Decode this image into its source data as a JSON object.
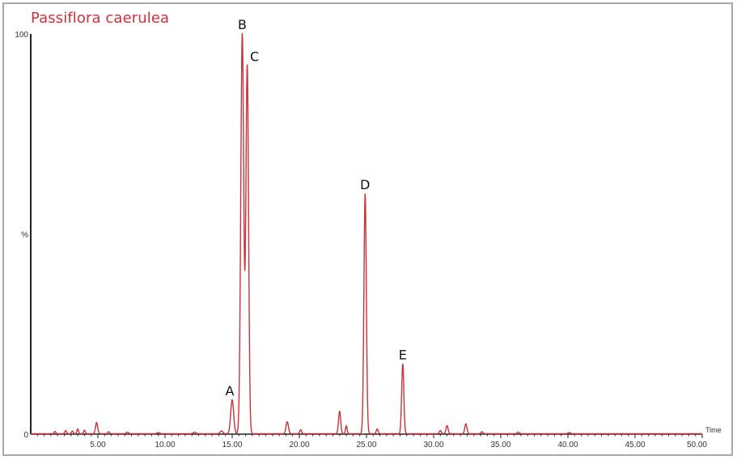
{
  "chart_data": {
    "type": "line",
    "title": "Passiflora caerulea",
    "xlabel": "Time",
    "ylabel": "%",
    "xlim": [
      0,
      50
    ],
    "ylim": [
      0,
      100
    ],
    "x_ticks": [
      "5.00",
      "10.00",
      "15.00",
      "20.00",
      "25.00",
      "30.00",
      "35.00",
      "40.00",
      "45.00",
      "50.00"
    ],
    "y_ticks": [
      "100",
      "%",
      "0"
    ],
    "grid": false,
    "series": [
      {
        "color": "#c8323c",
        "peaks": [
          {
            "x": 1.8,
            "y": 0.6,
            "w": 0.06
          },
          {
            "x": 2.6,
            "y": 0.8,
            "w": 0.06
          },
          {
            "x": 3.1,
            "y": 0.7,
            "w": 0.06
          },
          {
            "x": 3.5,
            "y": 1.2,
            "w": 0.06
          },
          {
            "x": 4.0,
            "y": 0.9,
            "w": 0.06
          },
          {
            "x": 4.9,
            "y": 2.8,
            "w": 0.08
          },
          {
            "x": 5.8,
            "y": 0.5,
            "w": 0.07
          },
          {
            "x": 7.2,
            "y": 0.4,
            "w": 0.08
          },
          {
            "x": 9.5,
            "y": 0.3,
            "w": 0.1
          },
          {
            "x": 12.2,
            "y": 0.4,
            "w": 0.1
          },
          {
            "x": 14.2,
            "y": 0.7,
            "w": 0.1
          },
          {
            "x": 15.0,
            "y": 8.5,
            "w": 0.11
          },
          {
            "x": 15.75,
            "y": 100,
            "w": 0.11
          },
          {
            "x": 16.12,
            "y": 92,
            "w": 0.1
          },
          {
            "x": 19.1,
            "y": 3.0,
            "w": 0.09
          },
          {
            "x": 20.1,
            "y": 1.0,
            "w": 0.07
          },
          {
            "x": 23.0,
            "y": 5.6,
            "w": 0.08
          },
          {
            "x": 23.5,
            "y": 2.0,
            "w": 0.06
          },
          {
            "x": 24.9,
            "y": 60,
            "w": 0.09
          },
          {
            "x": 25.8,
            "y": 1.2,
            "w": 0.07
          },
          {
            "x": 27.7,
            "y": 17.5,
            "w": 0.08
          },
          {
            "x": 30.5,
            "y": 0.8,
            "w": 0.07
          },
          {
            "x": 31.0,
            "y": 2.0,
            "w": 0.08
          },
          {
            "x": 32.4,
            "y": 2.5,
            "w": 0.08
          },
          {
            "x": 33.6,
            "y": 0.5,
            "w": 0.07
          },
          {
            "x": 36.3,
            "y": 0.4,
            "w": 0.08
          },
          {
            "x": 40.1,
            "y": 0.3,
            "w": 0.09
          }
        ]
      }
    ],
    "annotations": [
      {
        "text": "A",
        "x": 15.0,
        "y": 8.5
      },
      {
        "text": "B",
        "x": 15.75,
        "y": 100
      },
      {
        "text": "C",
        "x": 16.12,
        "y": 92
      },
      {
        "text": "D",
        "x": 24.9,
        "y": 60
      },
      {
        "text": "E",
        "x": 27.7,
        "y": 17.5
      }
    ]
  }
}
